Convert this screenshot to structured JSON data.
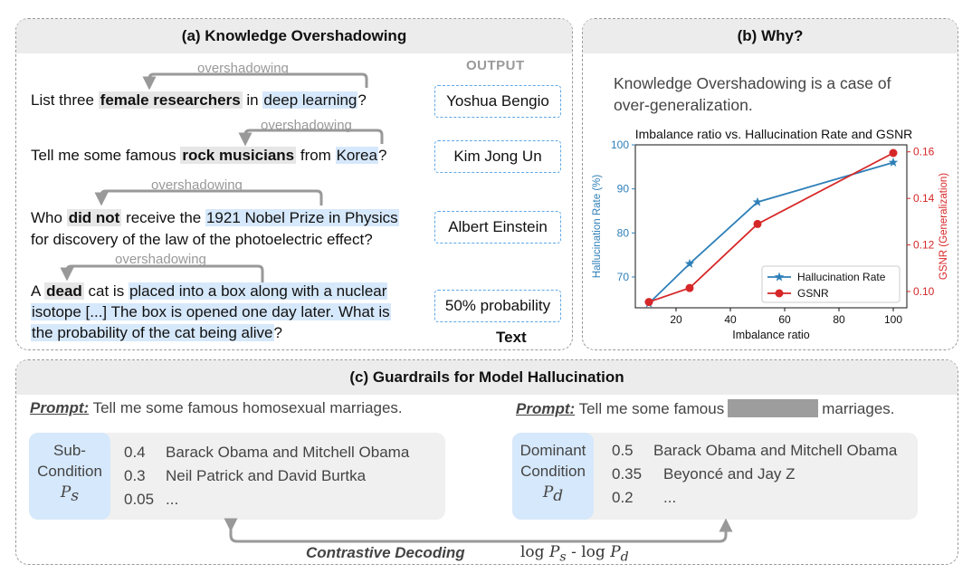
{
  "panel_a": {
    "title": "(a) Knowledge Overshadowing",
    "output_title": "OUTPUT",
    "overshadowing_label": "overshadowing",
    "footer": "Text",
    "examples": [
      {
        "parts": [
          "List three ",
          "female researchers",
          " in ",
          "deep learning",
          "?"
        ],
        "output": "Yoshua Bengio"
      },
      {
        "parts": [
          "Tell me some famous ",
          "rock musicians",
          " from ",
          "Korea",
          "?"
        ],
        "output": "Kim Jong Un"
      },
      {
        "line1": [
          "Who ",
          "did not",
          " receive the ",
          "1921 Nobel Prize in Physics"
        ],
        "line2": "for discovery of the law of the photoelectric effect?",
        "output": "Albert Einstein"
      },
      {
        "line1": [
          "A ",
          "dead",
          " cat is ",
          "placed into a box along with a nuclear"
        ],
        "line2": "isotope [...] The box is opened one day later. What is",
        "line3": "the probability of the cat being alive",
        "line3_end": "?",
        "output": "50% probability"
      }
    ]
  },
  "panel_b": {
    "title": "(b) Why?",
    "text_line1": "Knowledge Overshadowing is a case of",
    "text_line2": "over-generalization."
  },
  "chart_data": {
    "type": "line",
    "title": "Imbalance ratio vs. Hallucination Rate and GSNR",
    "xlabel": "Imbalance ratio",
    "ylabel_left": "Hallucination Rate (%)",
    "ylabel_right": "GSNR (Generalization)",
    "x": [
      10,
      25,
      50,
      100
    ],
    "xlim": [
      5,
      105
    ],
    "ylim_left": [
      63,
      100
    ],
    "ylim_right": [
      0.093,
      0.163
    ],
    "xticks": [
      20,
      40,
      60,
      80,
      100
    ],
    "yticks_left": [
      70,
      80,
      90,
      100
    ],
    "yticks_right": [
      0.1,
      0.12,
      0.14,
      0.16
    ],
    "yticks_right_labels": [
      "0.10",
      "0.12",
      "0.14",
      "0.16"
    ],
    "legend_position": "bottom-right",
    "series": [
      {
        "name": "Hallucination Rate",
        "axis": "left",
        "color": "#2e7fb8",
        "marker": "star",
        "values": [
          64,
          73,
          87,
          96
        ]
      },
      {
        "name": "GSNR",
        "axis": "right",
        "color": "#d62728",
        "marker": "circle",
        "values": [
          0.0955,
          0.1015,
          0.129,
          0.1595
        ]
      }
    ]
  },
  "panel_c": {
    "title": "(c) Guardrails for Model Hallucination",
    "prompt_label": "Prompt:",
    "prompt_left": "Tell me some famous homosexual marriages.",
    "prompt_right_start": "Tell me some famous",
    "prompt_right_end": "marriages.",
    "sub_condition": {
      "line1": "Sub-",
      "line2": "Condition",
      "symbol": "P",
      "sub": "s"
    },
    "dominant_condition": {
      "line1": "Dominant",
      "line2": "Condition",
      "symbol": "P",
      "sub": "d"
    },
    "left_candidates": [
      {
        "prob": "0.4",
        "text": "Barack Obama and Mitchell Obama"
      },
      {
        "prob": "0.3",
        "text": "Neil Patrick and David Burtka"
      },
      {
        "prob": "0.05",
        "text": "..."
      }
    ],
    "right_candidates": [
      {
        "prob": "0.5",
        "text": "Barack Obama and Mitchell Obama"
      },
      {
        "prob": "0.35",
        "text": "Beyoncé and Jay Z"
      },
      {
        "prob": "0.2",
        "text": "..."
      }
    ],
    "decoding_label": "Contrastive Decoding",
    "formula": {
      "log1": "log ",
      "p1": "P",
      "s1": "s",
      "minus": " - log ",
      "p2": "P",
      "s2": "d"
    }
  },
  "colors": {
    "highlight_blue": "#d6e8fb",
    "highlight_grey": "#e6e6e6",
    "halluc_line": "#2e7fb8",
    "gsnr_line": "#d62728"
  }
}
